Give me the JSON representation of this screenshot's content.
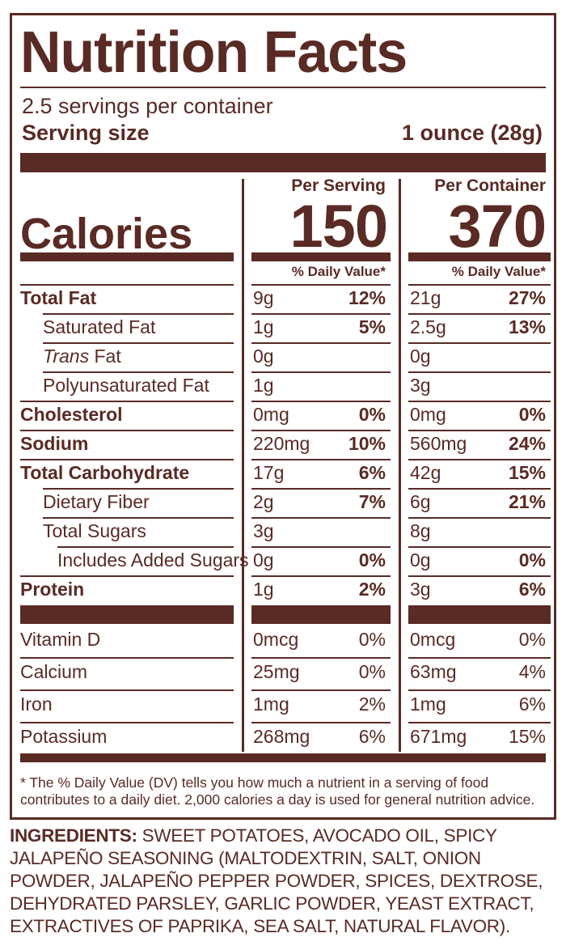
{
  "label": {
    "title": "Nutrition Facts",
    "servings_per_container": "2.5 servings per container",
    "serving_size_label": "Serving size",
    "serving_size_value": "1 ounce (28g)",
    "per_serving_header": "Per Serving",
    "per_container_header": "Per Container",
    "calories_label": "Calories",
    "calories_per_serving": "150",
    "calories_per_container": "370",
    "daily_value_header": "% Daily Value*",
    "nutrients": [
      {
        "name": "Total Fat",
        "s_amt": "9g",
        "s_dv": "12%",
        "c_amt": "21g",
        "c_dv": "27%"
      },
      {
        "name": "Saturated Fat",
        "s_amt": "1g",
        "s_dv": "5%",
        "c_amt": "2.5g",
        "c_dv": "13%"
      },
      {
        "name_italic": "Trans",
        "name": " Fat",
        "s_amt": "0g",
        "s_dv": "",
        "c_amt": "0g",
        "c_dv": ""
      },
      {
        "name": "Polyunsaturated Fat",
        "s_amt": "1g",
        "s_dv": "",
        "c_amt": "3g",
        "c_dv": ""
      },
      {
        "name": "Cholesterol",
        "s_amt": "0mg",
        "s_dv": "0%",
        "c_amt": "0mg",
        "c_dv": "0%"
      },
      {
        "name": "Sodium",
        "s_amt": "220mg",
        "s_dv": "10%",
        "c_amt": "560mg",
        "c_dv": "24%"
      },
      {
        "name": "Total Carbohydrate",
        "s_amt": "17g",
        "s_dv": "6%",
        "c_amt": "42g",
        "c_dv": "15%"
      },
      {
        "name": "Dietary Fiber",
        "s_amt": "2g",
        "s_dv": "7%",
        "c_amt": "6g",
        "c_dv": "21%"
      },
      {
        "name": "Total Sugars",
        "s_amt": "3g",
        "s_dv": "",
        "c_amt": "8g",
        "c_dv": ""
      },
      {
        "name": "Includes Added Sugars",
        "s_amt": "0g",
        "s_dv": "0%",
        "c_amt": "0g",
        "c_dv": "0%"
      },
      {
        "name": "Protein",
        "s_amt": "1g",
        "s_dv": "2%",
        "c_amt": "3g",
        "c_dv": "6%"
      }
    ],
    "vitamins": [
      {
        "name": "Vitamin D",
        "s_amt": "0mcg",
        "s_dv": "0%",
        "c_amt": "0mcg",
        "c_dv": "0%"
      },
      {
        "name": "Calcium",
        "s_amt": "25mg",
        "s_dv": "0%",
        "c_amt": "63mg",
        "c_dv": "4%"
      },
      {
        "name": "Iron",
        "s_amt": "1mg",
        "s_dv": "2%",
        "c_amt": "1mg",
        "c_dv": "6%"
      },
      {
        "name": "Potassium",
        "s_amt": "268mg",
        "s_dv": "6%",
        "c_amt": "671mg",
        "c_dv": "15%"
      }
    ],
    "footnote": "* The % Daily Value (DV) tells you how much a nutrient in a serving of food contributes to a daily diet. 2,000 calories a day is used for general nutrition advice."
  },
  "ingredients": {
    "label": "INGREDIENTS:",
    "text": " SWEET POTATOES, AVOCADO OIL, SPICY JALAPEÑO SEASONING (MALTODEXTRIN, SALT, ONION POWDER, JALAPEÑO PEPPER POWDER, SPICES, DEXTROSE, DEHYDRATED PARSLEY, GARLIC POWDER, YEAST EXTRACT, EXTRACTIVES OF PAPRIKA, SEA SALT, NATURAL FLAVOR)."
  },
  "colors": {
    "brand_brown": "#5a2a24",
    "background": "#ffffff"
  }
}
